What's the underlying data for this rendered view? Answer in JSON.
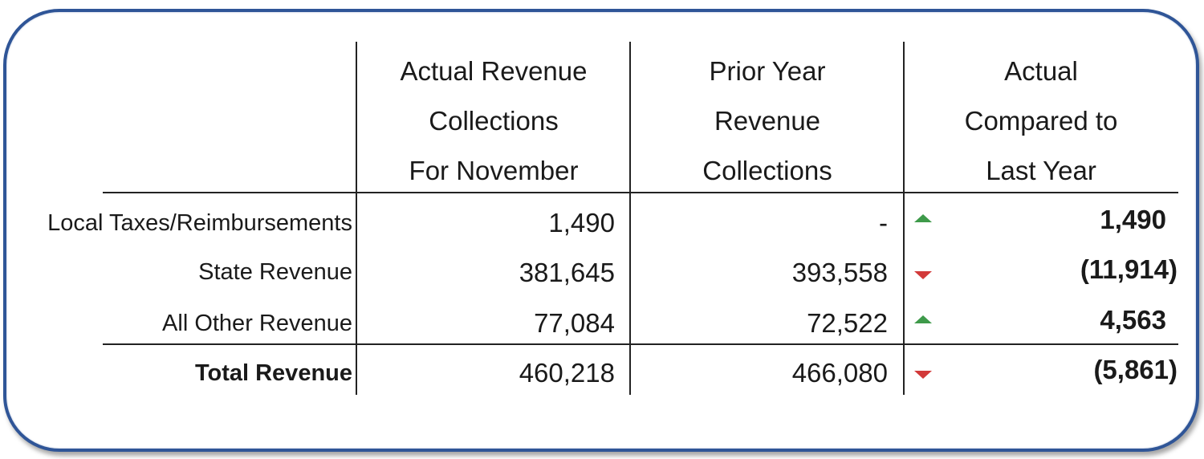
{
  "table": {
    "headers": [
      "Actual Revenue\nCollections\nFor November",
      "Prior Year\nRevenue\nCollections",
      "Actual\nCompared to\nLast Year"
    ],
    "rows": [
      {
        "label": "Local Taxes/Reimbursements",
        "actual": "1,490",
        "prior": "-",
        "direction": "up",
        "variance": "1,490"
      },
      {
        "label": "State Revenue",
        "actual": "381,645",
        "prior": "393,558",
        "direction": "down",
        "variance": "(11,914)"
      },
      {
        "label": "All Other Revenue",
        "actual": "77,084",
        "prior": "72,522",
        "direction": "up",
        "variance": "4,563"
      },
      {
        "label": "Total Revenue",
        "actual": "460,218",
        "prior": "466,080",
        "direction": "down",
        "variance": "(5,861)"
      }
    ]
  },
  "colors": {
    "frame_border": "#2f5597",
    "up_arrow": "#3e9a4a",
    "down_arrow": "#d23a3a"
  }
}
